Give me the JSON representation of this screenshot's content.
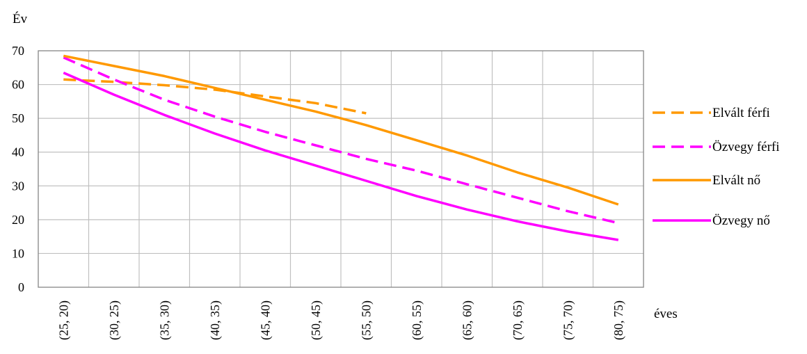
{
  "chart_data": {
    "type": "line",
    "title": "",
    "ylabel": "Év",
    "xlabel": "éves",
    "ylim": [
      0,
      70
    ],
    "yticks": [
      0,
      10,
      20,
      30,
      40,
      50,
      60,
      70
    ],
    "grid": true,
    "legend_position": "right",
    "categories": [
      "(25, 20)",
      "(30, 25)",
      "(35, 30)",
      "(40, 35)",
      "(45, 40)",
      "(50, 45)",
      "(55, 50)",
      "(60, 55)",
      "(65, 60)",
      "(70, 65)",
      "(75, 70)",
      "(80, 75)"
    ],
    "series": [
      {
        "name": "Elvált férfi",
        "color": "#FF9900",
        "dash": "dashed",
        "values": [
          61.5,
          60.8,
          59.8,
          58.5,
          56.5,
          54.5,
          51.5,
          null,
          null,
          null,
          null,
          null
        ]
      },
      {
        "name": "Özvegy férfi",
        "color": "#FF00FF",
        "dash": "dashed",
        "values": [
          68,
          61.5,
          55.5,
          50.5,
          46,
          42,
          38,
          34.5,
          30.5,
          26.5,
          22.5,
          19
        ]
      },
      {
        "name": "Elvált nő",
        "color": "#FF9900",
        "dash": "solid",
        "values": [
          68.5,
          65.5,
          62.5,
          59,
          55.5,
          52,
          48,
          43.5,
          39,
          34,
          29.5,
          24.5
        ]
      },
      {
        "name": "Özvegy nő",
        "color": "#FF00FF",
        "dash": "solid",
        "values": [
          63.5,
          57,
          51,
          45.5,
          40.5,
          36,
          31.5,
          27,
          23,
          19.5,
          16.5,
          14
        ]
      }
    ]
  }
}
